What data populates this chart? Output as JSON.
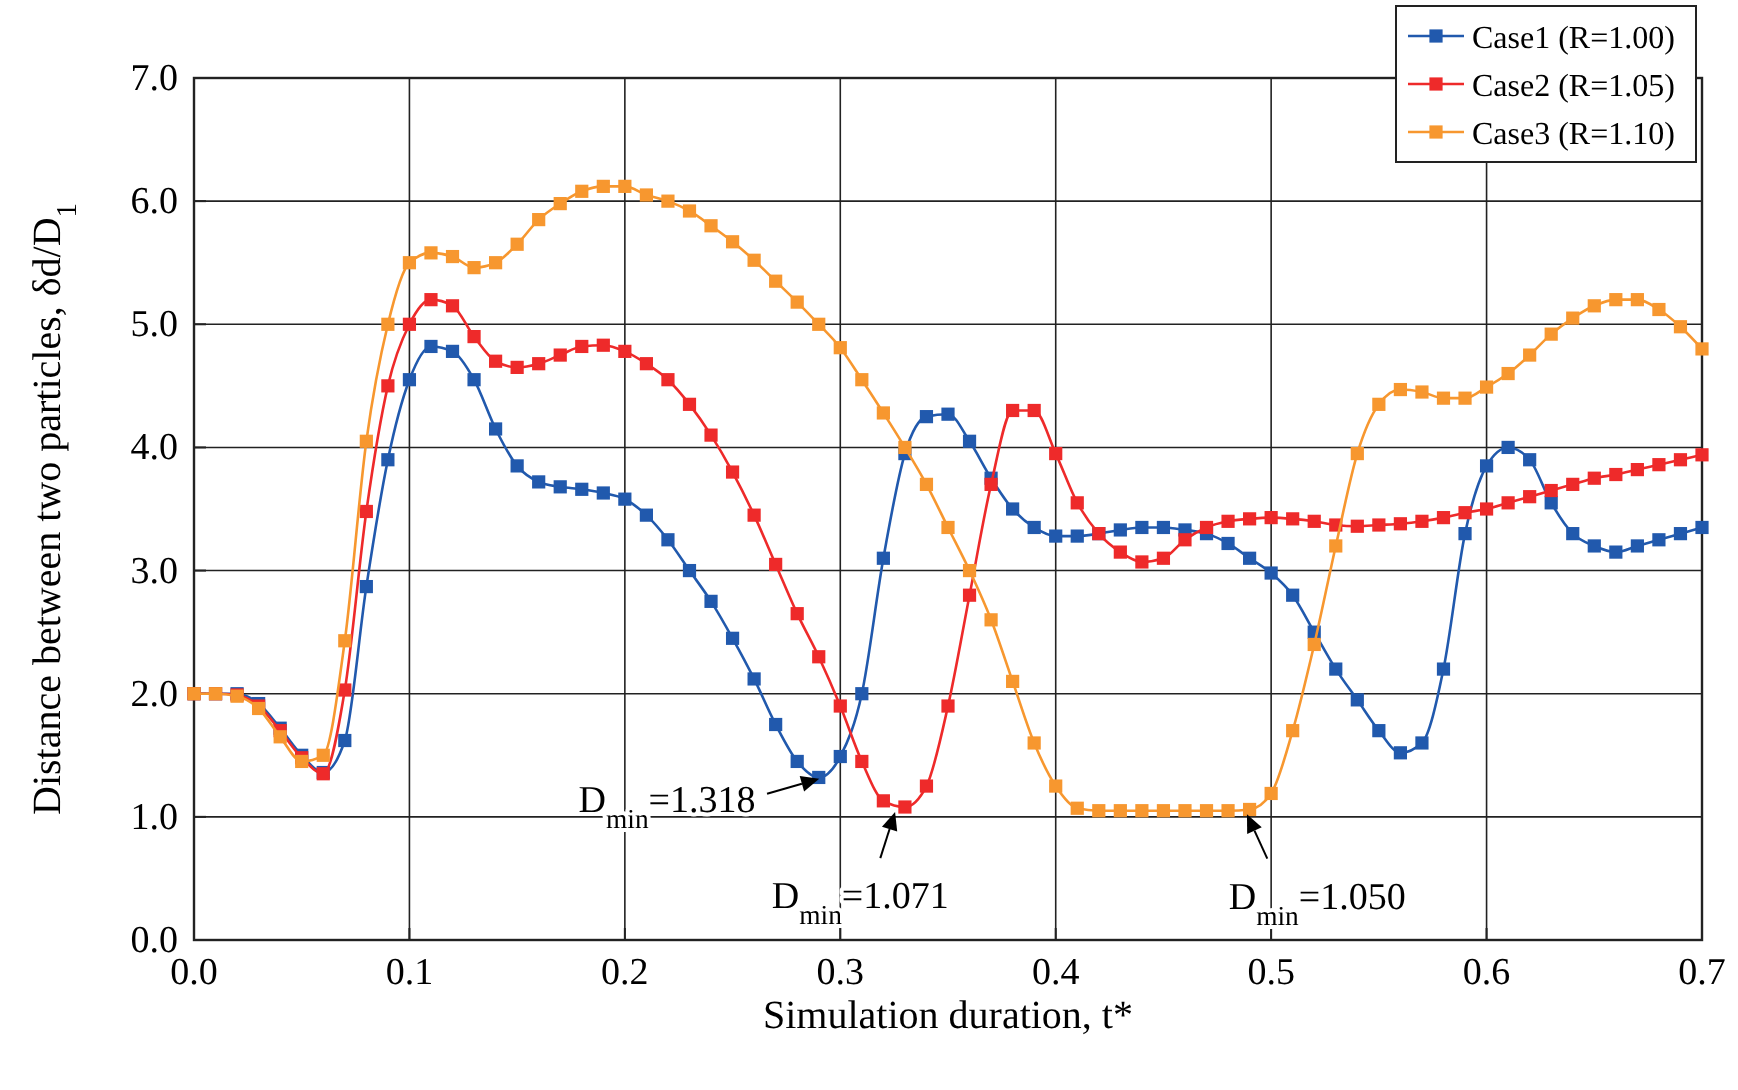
{
  "chart_data": {
    "type": "line",
    "xlabel": "Simulation duration, t*",
    "ylabel": "Distance between two particles, δd/D$_{1}$",
    "x": [
      0,
      0.01,
      0.02,
      0.03,
      0.04,
      0.05,
      0.06,
      0.07,
      0.08,
      0.09,
      0.1,
      0.11,
      0.12,
      0.13,
      0.14,
      0.15,
      0.16,
      0.17,
      0.18,
      0.19,
      0.2,
      0.21,
      0.22,
      0.23,
      0.24,
      0.25,
      0.26,
      0.27,
      0.28,
      0.29,
      0.3,
      0.31,
      0.32,
      0.33,
      0.34,
      0.35,
      0.36,
      0.37,
      0.38,
      0.39,
      0.4,
      0.41,
      0.42,
      0.43,
      0.44,
      0.45,
      0.46,
      0.47,
      0.48,
      0.49,
      0.5,
      0.51,
      0.52,
      0.53,
      0.54,
      0.55,
      0.56,
      0.57,
      0.58,
      0.59,
      0.6,
      0.61,
      0.62,
      0.63,
      0.64,
      0.65,
      0.66,
      0.67,
      0.68,
      0.69,
      0.7
    ],
    "series": [
      {
        "name": "Case1 (R=1.00)",
        "color": "#2159ad",
        "values": [
          2.0,
          2.0,
          2.0,
          1.92,
          1.72,
          1.5,
          1.36,
          1.62,
          2.87,
          3.9,
          4.55,
          4.82,
          4.78,
          4.55,
          4.15,
          3.85,
          3.72,
          3.68,
          3.66,
          3.63,
          3.58,
          3.45,
          3.25,
          3.0,
          2.75,
          2.45,
          2.12,
          1.75,
          1.45,
          1.32,
          1.49,
          2.0,
          3.1,
          3.95,
          4.25,
          4.27,
          4.05,
          3.75,
          3.5,
          3.35,
          3.28,
          3.28,
          3.3,
          3.33,
          3.35,
          3.35,
          3.33,
          3.3,
          3.22,
          3.1,
          2.98,
          2.8,
          2.5,
          2.2,
          1.95,
          1.7,
          1.52,
          1.6,
          2.2,
          3.3,
          3.85,
          4.0,
          3.9,
          3.55,
          3.3,
          3.2,
          3.15,
          3.2,
          3.25,
          3.3,
          3.35
        ]
      },
      {
        "name": "Case2 (R=1.05)",
        "color": "#ee2a2a",
        "values": [
          2.0,
          2.0,
          1.99,
          1.9,
          1.7,
          1.48,
          1.35,
          2.03,
          3.48,
          4.5,
          5.0,
          5.2,
          5.15,
          4.9,
          4.7,
          4.65,
          4.68,
          4.75,
          4.82,
          4.83,
          4.78,
          4.68,
          4.55,
          4.35,
          4.1,
          3.8,
          3.45,
          3.05,
          2.65,
          2.3,
          1.9,
          1.45,
          1.13,
          1.08,
          1.25,
          1.9,
          2.8,
          3.7,
          4.3,
          4.3,
          3.95,
          3.55,
          3.3,
          3.15,
          3.07,
          3.1,
          3.25,
          3.35,
          3.4,
          3.42,
          3.43,
          3.42,
          3.4,
          3.37,
          3.36,
          3.37,
          3.38,
          3.4,
          3.43,
          3.47,
          3.5,
          3.55,
          3.6,
          3.65,
          3.7,
          3.75,
          3.78,
          3.82,
          3.86,
          3.9,
          3.94
        ]
      },
      {
        "name": "Case3 (R=1.10)",
        "color": "#f7972f",
        "values": [
          2.0,
          2.0,
          1.98,
          1.88,
          1.65,
          1.45,
          1.5,
          2.43,
          4.05,
          5.0,
          5.5,
          5.58,
          5.55,
          5.46,
          5.5,
          5.65,
          5.85,
          5.98,
          6.08,
          6.12,
          6.12,
          6.05,
          6.0,
          5.92,
          5.8,
          5.67,
          5.52,
          5.35,
          5.18,
          5.0,
          4.81,
          4.55,
          4.28,
          4.0,
          3.7,
          3.35,
          3.0,
          2.6,
          2.1,
          1.6,
          1.25,
          1.07,
          1.05,
          1.05,
          1.05,
          1.05,
          1.05,
          1.05,
          1.05,
          1.06,
          1.19,
          1.7,
          2.4,
          3.2,
          3.95,
          4.35,
          4.47,
          4.45,
          4.4,
          4.4,
          4.49,
          4.6,
          4.75,
          4.92,
          5.05,
          5.15,
          5.2,
          5.2,
          5.12,
          4.98,
          4.8
        ]
      }
    ],
    "xlim": [
      0,
      0.7
    ],
    "xticks": [
      {
        "value": 0,
        "label": "0.0"
      },
      0.1,
      0.2,
      0.3,
      0.4,
      0.5,
      0.6,
      0.7
    ],
    "ylim": [
      0,
      7
    ],
    "yticks": [
      {
        "value": 0,
        "label": "0.0"
      },
      {
        "value": 1,
        "label": "1.0"
      },
      {
        "value": 2,
        "label": "2.0"
      },
      {
        "value": 3,
        "label": "3.0"
      },
      {
        "value": 4,
        "label": "4.0"
      },
      {
        "value": 5,
        "label": "5.0"
      },
      {
        "value": 6,
        "label": "6.0"
      },
      {
        "value": 7,
        "label": "7.0"
      }
    ],
    "grid": true,
    "legend": "top right",
    "marker": "square",
    "line_style": "solid",
    "annotations": [
      {
        "text": "D$_{min}$=1.318",
        "x": 0.292,
        "y": 1.318
      },
      {
        "text": "D$_{min}$=1.071",
        "x": 0.326,
        "y": 1.071
      },
      {
        "text": "D$_{min}$=1.050",
        "x": 0.488,
        "y": 1.05
      }
    ]
  }
}
